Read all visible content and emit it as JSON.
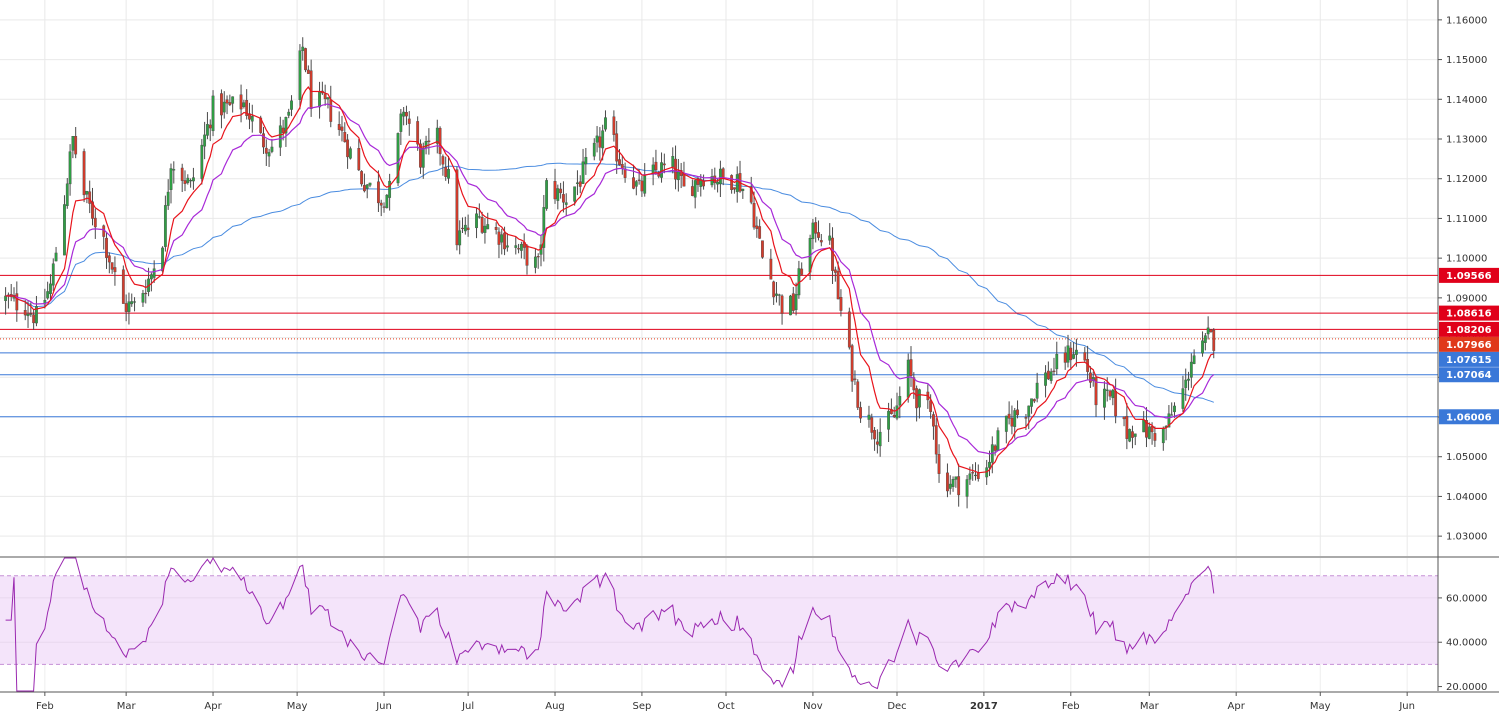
{
  "chart_data": {
    "type": "candlestick",
    "instrument": "",
    "timeframe": "",
    "grid": true,
    "price_axis": {
      "position": "right",
      "ylim": [
        1.025,
        1.165
      ],
      "ticks": [
        "1.03000",
        "1.04000",
        "1.05000",
        "1.06000",
        "1.07000",
        "1.08000",
        "1.09000",
        "1.10000",
        "1.11000",
        "1.12000",
        "1.13000",
        "1.14000",
        "1.15000",
        "1.16000"
      ]
    },
    "time_axis": {
      "xlim": [
        "2016-01-16",
        "2017-06-12"
      ],
      "ticks": [
        {
          "date": "2016-02-01",
          "label": "Feb",
          "bold": false
        },
        {
          "date": "2016-03-01",
          "label": "Mar",
          "bold": false
        },
        {
          "date": "2016-04-01",
          "label": "Apr",
          "bold": false
        },
        {
          "date": "2016-05-01",
          "label": "May",
          "bold": false
        },
        {
          "date": "2016-06-01",
          "label": "Jun",
          "bold": false
        },
        {
          "date": "2016-07-01",
          "label": "Jul",
          "bold": false
        },
        {
          "date": "2016-08-01",
          "label": "Aug",
          "bold": false
        },
        {
          "date": "2016-09-01",
          "label": "Sep",
          "bold": false
        },
        {
          "date": "2016-10-01",
          "label": "Oct",
          "bold": false
        },
        {
          "date": "2016-11-01",
          "label": "Nov",
          "bold": false
        },
        {
          "date": "2016-12-01",
          "label": "Dec",
          "bold": false
        },
        {
          "date": "2017-01-01",
          "label": "2017",
          "bold": true
        },
        {
          "date": "2017-02-01",
          "label": "Feb",
          "bold": false
        },
        {
          "date": "2017-03-01",
          "label": "Mar",
          "bold": false
        },
        {
          "date": "2017-04-01",
          "label": "Apr",
          "bold": false
        },
        {
          "date": "2017-05-01",
          "label": "May",
          "bold": false
        },
        {
          "date": "2017-06-01",
          "label": "Jun",
          "bold": false
        }
      ]
    },
    "horizontal_levels": [
      {
        "value": 1.09566,
        "label": "1.09566",
        "color": "#e0001a",
        "style": "solid"
      },
      {
        "value": 1.08616,
        "label": "1.08616",
        "color": "#e0001a",
        "style": "solid"
      },
      {
        "value": 1.08206,
        "label": "1.08206",
        "color": "#e0001a",
        "style": "solid"
      },
      {
        "value": 1.07966,
        "label": "1.07966",
        "color": "#e0391a",
        "style": "dotted"
      },
      {
        "value": 1.07615,
        "label": "1.07615",
        "color": "#3a78d8",
        "style": "solid"
      },
      {
        "value": 1.07064,
        "label": "1.07064",
        "color": "#3a78d8",
        "style": "solid"
      },
      {
        "value": 1.06006,
        "label": "1.06006",
        "color": "#3a78d8",
        "style": "solid"
      }
    ],
    "moving_average_colors": {
      "fast": "#e8141c",
      "medium": "#a829d8",
      "slow": "#4a8ce0"
    },
    "candle_colors": {
      "up": "#2f9e44",
      "down": "#d23c2c"
    },
    "close_anchors": [
      [
        "2016-01-16",
        1.09
      ],
      [
        "2016-01-25",
        1.088
      ],
      [
        "2016-01-29",
        1.085
      ],
      [
        "2016-02-03",
        1.093
      ],
      [
        "2016-02-08",
        1.115
      ],
      [
        "2016-02-11",
        1.13
      ],
      [
        "2016-02-15",
        1.116
      ],
      [
        "2016-02-22",
        1.105
      ],
      [
        "2016-02-29",
        1.088
      ],
      [
        "2016-03-04",
        1.088
      ],
      [
        "2016-03-10",
        1.096
      ],
      [
        "2016-03-14",
        1.105
      ],
      [
        "2016-03-17",
        1.125
      ],
      [
        "2016-03-24",
        1.118
      ],
      [
        "2016-04-01",
        1.138
      ],
      [
        "2016-04-07",
        1.138
      ],
      [
        "2016-04-12",
        1.139
      ],
      [
        "2016-04-18",
        1.13
      ],
      [
        "2016-04-22",
        1.128
      ],
      [
        "2016-04-28",
        1.135
      ],
      [
        "2016-05-03",
        1.153
      ],
      [
        "2016-05-06",
        1.14
      ],
      [
        "2016-05-12",
        1.138
      ],
      [
        "2016-05-18",
        1.13
      ],
      [
        "2016-05-24",
        1.12
      ],
      [
        "2016-05-31",
        1.115
      ],
      [
        "2016-06-03",
        1.117
      ],
      [
        "2016-06-08",
        1.138
      ],
      [
        "2016-06-14",
        1.125
      ],
      [
        "2016-06-20",
        1.13
      ],
      [
        "2016-06-24",
        1.12
      ],
      [
        "2016-06-27",
        1.105
      ],
      [
        "2016-07-05",
        1.11
      ],
      [
        "2016-07-12",
        1.106
      ],
      [
        "2016-07-19",
        1.102
      ],
      [
        "2016-07-26",
        1.098
      ],
      [
        "2016-07-29",
        1.118
      ],
      [
        "2016-08-05",
        1.115
      ],
      [
        "2016-08-10",
        1.12
      ],
      [
        "2016-08-16",
        1.128
      ],
      [
        "2016-08-19",
        1.133
      ],
      [
        "2016-08-24",
        1.125
      ],
      [
        "2016-08-31",
        1.117
      ],
      [
        "2016-09-06",
        1.122
      ],
      [
        "2016-09-12",
        1.123
      ],
      [
        "2016-09-16",
        1.117
      ],
      [
        "2016-09-23",
        1.121
      ],
      [
        "2016-09-30",
        1.12
      ],
      [
        "2016-10-05",
        1.12
      ],
      [
        "2016-10-10",
        1.114
      ],
      [
        "2016-10-14",
        1.1
      ],
      [
        "2016-10-21",
        1.088
      ],
      [
        "2016-10-25",
        1.088
      ],
      [
        "2016-10-28",
        1.098
      ],
      [
        "2016-11-02",
        1.108
      ],
      [
        "2016-11-07",
        1.103
      ],
      [
        "2016-11-10",
        1.09
      ],
      [
        "2016-11-14",
        1.075
      ],
      [
        "2016-11-18",
        1.062
      ],
      [
        "2016-11-24",
        1.056
      ],
      [
        "2016-11-30",
        1.06
      ],
      [
        "2016-12-05",
        1.072
      ],
      [
        "2016-12-08",
        1.065
      ],
      [
        "2016-12-14",
        1.06
      ],
      [
        "2016-12-16",
        1.045
      ],
      [
        "2016-12-22",
        1.043
      ],
      [
        "2016-12-28",
        1.045
      ],
      [
        "2017-01-02",
        1.048
      ],
      [
        "2017-01-05",
        1.053
      ],
      [
        "2017-01-11",
        1.06
      ],
      [
        "2017-01-16",
        1.062
      ],
      [
        "2017-01-20",
        1.068
      ],
      [
        "2017-01-27",
        1.073
      ],
      [
        "2017-02-02",
        1.077
      ],
      [
        "2017-02-06",
        1.074
      ],
      [
        "2017-02-10",
        1.065
      ],
      [
        "2017-02-16",
        1.064
      ],
      [
        "2017-02-21",
        1.056
      ],
      [
        "2017-02-24",
        1.058
      ],
      [
        "2017-03-01",
        1.056
      ],
      [
        "2017-03-06",
        1.056
      ],
      [
        "2017-03-10",
        1.062
      ],
      [
        "2017-03-14",
        1.068
      ],
      [
        "2017-03-16",
        1.075
      ],
      [
        "2017-03-20",
        1.077
      ],
      [
        "2017-03-22",
        1.08
      ],
      [
        "2017-03-24",
        1.0795
      ]
    ]
  },
  "rsi_data": {
    "ylim": [
      18,
      78
    ],
    "ticks": [
      "20.0000",
      "40.0000",
      "60.0000"
    ],
    "band": [
      30,
      70
    ],
    "line_color": "#9a28b0",
    "band_color": "#f4e4fa"
  }
}
